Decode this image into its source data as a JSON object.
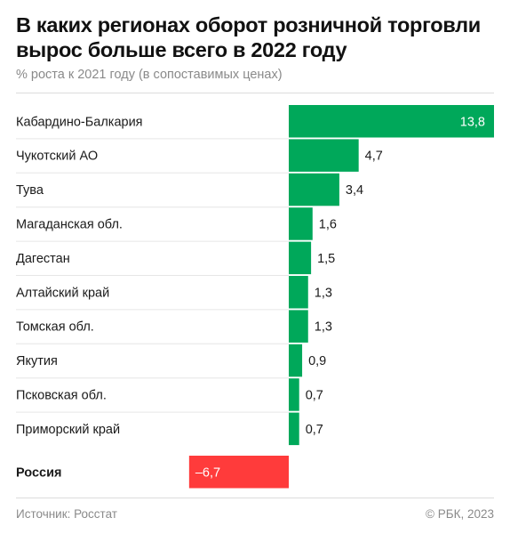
{
  "title": "В каких регионах оборот розничной торговли вырос больше всего в 2022 году",
  "subtitle": "% роста к 2021 году (в сопоставимых ценах)",
  "footer": {
    "source": "Источник: Росстат",
    "copyright": "© РБК, 2023"
  },
  "colors": {
    "positive": "#00a85a",
    "negative": "#ff3b3b",
    "text": "#1a1a1a",
    "muted": "#8a8a8a"
  },
  "chart_data": {
    "type": "bar",
    "orientation": "horizontal",
    "title": "В каких регионах оборот розничной торговли вырос больше всего в 2022 году",
    "subtitle": "% роста к 2021 году (в сопоставимых ценах)",
    "categories": [
      "Кабардино-Балкария",
      "Чукотский АО",
      "Тува",
      "Магаданская обл.",
      "Дагестан",
      "Алтайский край",
      "Томская обл.",
      "Якутия",
      "Псковская обл.",
      "Приморский край",
      "Россия"
    ],
    "values": [
      13.8,
      4.7,
      3.4,
      1.6,
      1.5,
      1.3,
      1.3,
      0.9,
      0.7,
      0.7,
      -6.7
    ],
    "value_labels": [
      "13,8",
      "4,7",
      "3,4",
      "1,6",
      "1,5",
      "1,3",
      "1,3",
      "0,9",
      "0,7",
      "0,7",
      "–6,7"
    ],
    "highlight": [
      "Россия"
    ],
    "xlim": [
      -6.7,
      13.8
    ],
    "grid": false,
    "legend": "none"
  }
}
